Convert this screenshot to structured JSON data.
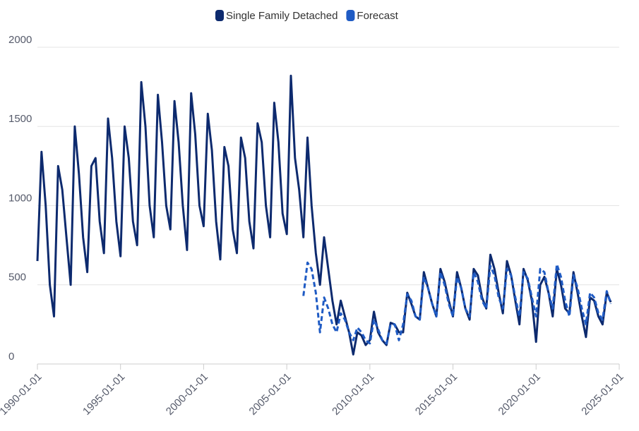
{
  "chart_data": {
    "type": "line",
    "x": [
      "1990-01-01",
      "1990-04-01",
      "1990-07-01",
      "1990-10-01",
      "1991-01-01",
      "1991-04-01",
      "1991-07-01",
      "1991-10-01",
      "1992-01-01",
      "1992-04-01",
      "1992-07-01",
      "1992-10-01",
      "1993-01-01",
      "1993-04-01",
      "1993-07-01",
      "1993-10-01",
      "1994-01-01",
      "1994-04-01",
      "1994-07-01",
      "1994-10-01",
      "1995-01-01",
      "1995-04-01",
      "1995-07-01",
      "1995-10-01",
      "1996-01-01",
      "1996-04-01",
      "1996-07-01",
      "1996-10-01",
      "1997-01-01",
      "1997-04-01",
      "1997-07-01",
      "1997-10-01",
      "1998-01-01",
      "1998-04-01",
      "1998-07-01",
      "1998-10-01",
      "1999-01-01",
      "1999-04-01",
      "1999-07-01",
      "1999-10-01",
      "2000-01-01",
      "2000-04-01",
      "2000-07-01",
      "2000-10-01",
      "2001-01-01",
      "2001-04-01",
      "2001-07-01",
      "2001-10-01",
      "2002-01-01",
      "2002-04-01",
      "2002-07-01",
      "2002-10-01",
      "2003-01-01",
      "2003-04-01",
      "2003-07-01",
      "2003-10-01",
      "2004-01-01",
      "2004-04-01",
      "2004-07-01",
      "2004-10-01",
      "2005-01-01",
      "2005-04-01",
      "2005-07-01",
      "2005-10-01",
      "2006-01-01",
      "2006-04-01",
      "2006-07-01",
      "2006-10-01",
      "2007-01-01",
      "2007-04-01",
      "2007-07-01",
      "2007-10-01",
      "2008-01-01",
      "2008-04-01",
      "2008-07-01",
      "2008-10-01",
      "2009-01-01",
      "2009-04-01",
      "2009-07-01",
      "2009-10-01",
      "2010-01-01",
      "2010-04-01",
      "2010-07-01",
      "2010-10-01",
      "2011-01-01",
      "2011-04-01",
      "2011-07-01",
      "2011-10-01",
      "2012-01-01",
      "2012-04-01",
      "2012-07-01",
      "2012-10-01",
      "2013-01-01",
      "2013-04-01",
      "2013-07-01",
      "2013-10-01",
      "2014-01-01",
      "2014-04-01",
      "2014-07-01",
      "2014-10-01",
      "2015-01-01",
      "2015-04-01",
      "2015-07-01",
      "2015-10-01",
      "2016-01-01",
      "2016-04-01",
      "2016-07-01",
      "2016-10-01",
      "2017-01-01",
      "2017-04-01",
      "2017-07-01",
      "2017-10-01",
      "2018-01-01",
      "2018-04-01",
      "2018-07-01",
      "2018-10-01",
      "2019-01-01",
      "2019-04-01",
      "2019-07-01",
      "2019-10-01",
      "2020-01-01",
      "2020-04-01",
      "2020-07-01",
      "2020-10-01",
      "2021-01-01",
      "2021-04-01",
      "2021-07-01",
      "2021-10-01",
      "2022-01-01",
      "2022-04-01",
      "2022-07-01",
      "2022-10-01",
      "2023-01-01",
      "2023-04-01",
      "2023-07-01",
      "2023-10-01",
      "2024-01-01",
      "2024-04-01",
      "2024-07-01"
    ],
    "series": [
      {
        "name": "Single Family Detached",
        "color": "#0d2a6e",
        "dashed": false,
        "values": [
          650,
          1340,
          1000,
          500,
          300,
          1250,
          1100,
          800,
          500,
          1500,
          1200,
          800,
          580,
          1250,
          1300,
          900,
          700,
          1550,
          1300,
          900,
          680,
          1500,
          1300,
          900,
          750,
          1780,
          1500,
          1000,
          800,
          1700,
          1400,
          1000,
          850,
          1660,
          1400,
          1000,
          720,
          1710,
          1450,
          1000,
          870,
          1580,
          1350,
          900,
          660,
          1370,
          1250,
          850,
          700,
          1430,
          1300,
          900,
          730,
          1520,
          1400,
          1000,
          800,
          1650,
          1400,
          950,
          820,
          1820,
          1300,
          1100,
          800,
          1430,
          1000,
          700,
          500,
          800,
          600,
          400,
          250,
          400,
          300,
          200,
          60,
          200,
          180,
          120,
          150,
          330,
          200,
          150,
          120,
          260,
          250,
          200,
          200,
          450,
          380,
          300,
          280,
          580,
          480,
          380,
          300,
          600,
          520,
          400,
          300,
          580,
          480,
          350,
          280,
          600,
          560,
          420,
          350,
          690,
          600,
          450,
          320,
          650,
          560,
          400,
          250,
          600,
          530,
          400,
          140,
          500,
          550,
          450,
          300,
          600,
          500,
          350,
          320,
          580,
          450,
          300,
          170,
          420,
          400,
          300,
          250,
          450,
          390
        ]
      },
      {
        "name": "Forecast",
        "color": "#1f5bc4",
        "dashed": true,
        "values": [
          null,
          null,
          null,
          null,
          null,
          null,
          null,
          null,
          null,
          null,
          null,
          null,
          null,
          null,
          null,
          null,
          null,
          null,
          null,
          null,
          null,
          null,
          null,
          null,
          null,
          null,
          null,
          null,
          null,
          null,
          null,
          null,
          null,
          null,
          null,
          null,
          null,
          null,
          null,
          null,
          null,
          null,
          null,
          null,
          null,
          null,
          null,
          null,
          null,
          null,
          null,
          null,
          null,
          null,
          null,
          null,
          null,
          null,
          null,
          null,
          null,
          null,
          null,
          null,
          430,
          640,
          600,
          450,
          200,
          420,
          350,
          250,
          200,
          320,
          280,
          200,
          150,
          230,
          200,
          150,
          130,
          280,
          220,
          150,
          130,
          250,
          250,
          150,
          250,
          440,
          400,
          300,
          280,
          550,
          480,
          380,
          300,
          580,
          500,
          380,
          300,
          550,
          480,
          350,
          300,
          580,
          520,
          400,
          350,
          620,
          560,
          420,
          350,
          600,
          560,
          420,
          300,
          580,
          540,
          420,
          300,
          600,
          580,
          450,
          350,
          630,
          550,
          400,
          300,
          560,
          480,
          350,
          250,
          450,
          420,
          320,
          280,
          460,
          380
        ]
      }
    ],
    "xlim": [
      "1990-01-01",
      "2025-01-01"
    ],
    "xticks": [
      "1990-01-01",
      "1995-01-01",
      "2000-01-01",
      "2005-01-01",
      "2010-01-01",
      "2015-01-01",
      "2020-01-01",
      "2025-01-01"
    ],
    "ylim": [
      0,
      2000
    ],
    "yticks": [
      0,
      500,
      1000,
      1500,
      2000
    ],
    "grid": true,
    "legend": "top"
  }
}
